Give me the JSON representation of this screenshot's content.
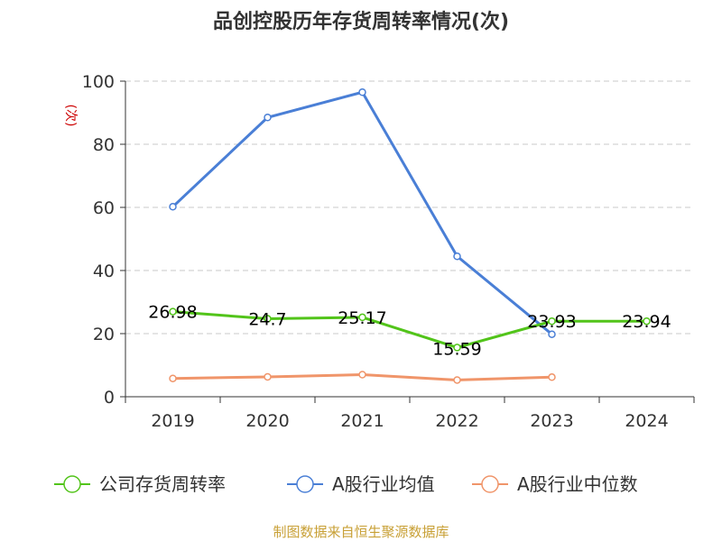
{
  "chart_data": {
    "type": "line",
    "title": "品创控股历年存货周转率情况(次)",
    "ylabel": "(次)",
    "xlabel": "",
    "categories": [
      "2019",
      "2020",
      "2021",
      "2022",
      "2023",
      "2024"
    ],
    "ylim": [
      0,
      100
    ],
    "yticks": [
      0,
      20,
      40,
      60,
      80,
      100
    ],
    "grid": true,
    "legend_position": "bottom",
    "series": [
      {
        "name": "公司存货周转率",
        "color": "#52c41a",
        "values": [
          26.98,
          24.7,
          25.17,
          15.59,
          23.93,
          23.94
        ],
        "labels": [
          "26.98",
          "24.7",
          "25.17",
          "15.59",
          "23.93",
          "23.94"
        ]
      },
      {
        "name": "A股行业均值",
        "color": "#4a7fd6",
        "values": [
          60.2,
          88.5,
          96.5,
          44.5,
          19.8,
          null
        ]
      },
      {
        "name": "A股行业中位数",
        "color": "#f0956a",
        "values": [
          5.8,
          6.3,
          7.0,
          5.3,
          6.2,
          null
        ]
      }
    ],
    "source": "制图数据来自恒生聚源数据库"
  }
}
